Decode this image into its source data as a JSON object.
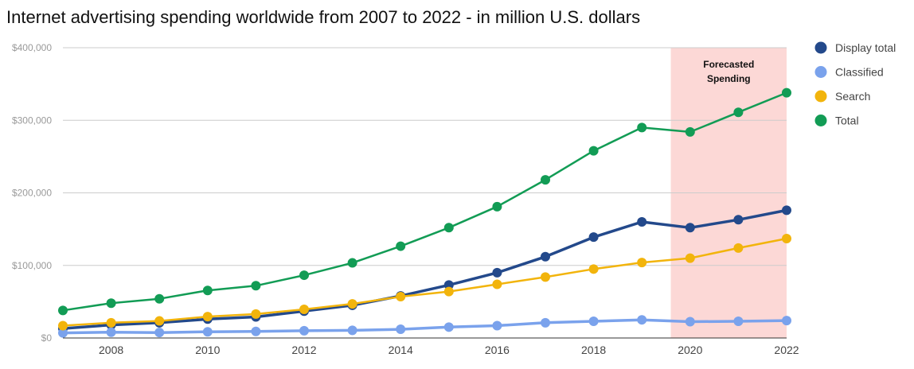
{
  "chart_data": {
    "type": "line",
    "title": "Internet advertising spending worldwide from 2007 to 2022 - in million U.S. dollars",
    "xlabel": "",
    "ylabel": "",
    "x": [
      2007,
      2008,
      2009,
      2010,
      2011,
      2012,
      2013,
      2014,
      2015,
      2016,
      2017,
      2018,
      2019,
      2020,
      2021,
      2022
    ],
    "xlim": [
      2007,
      2022
    ],
    "xticks": [
      "2008",
      "2010",
      "2012",
      "2014",
      "2016",
      "2018",
      "2020",
      "2022"
    ],
    "ylim": [
      0,
      400000
    ],
    "yticks": [
      "$0",
      "$100,000",
      "$200,000",
      "$300,000",
      "$400,000"
    ],
    "grid": true,
    "legend_position": "right",
    "series": [
      {
        "name": "Display total",
        "color": "#23498b",
        "values": [
          13000,
          18000,
          21000,
          26000,
          29000,
          37000,
          45000,
          58000,
          73000,
          90000,
          112000,
          139000,
          160000,
          152000,
          163000,
          176000
        ]
      },
      {
        "name": "Classified",
        "color": "#7aa2ec",
        "values": [
          7000,
          8000,
          7500,
          8500,
          9000,
          10000,
          10500,
          12000,
          15000,
          17000,
          21000,
          23000,
          25000,
          22500,
          23000,
          24000
        ]
      },
      {
        "name": "Search",
        "color": "#f2b40c",
        "values": [
          17000,
          21000,
          23500,
          29500,
          33000,
          39500,
          47000,
          57000,
          64000,
          74000,
          84000,
          95000,
          104000,
          110000,
          124000,
          137000
        ]
      },
      {
        "name": "Total",
        "color": "#129c55",
        "values": [
          38000,
          48000,
          54000,
          65500,
          72000,
          86500,
          103500,
          126500,
          152000,
          181000,
          218000,
          258000,
          290000,
          284000,
          311000,
          338000
        ]
      }
    ],
    "forecast_region": {
      "from": 2019.6,
      "to": 2022,
      "label_lines": [
        "Forecasted",
        "Spending"
      ],
      "color": "#fcd8d6"
    }
  }
}
